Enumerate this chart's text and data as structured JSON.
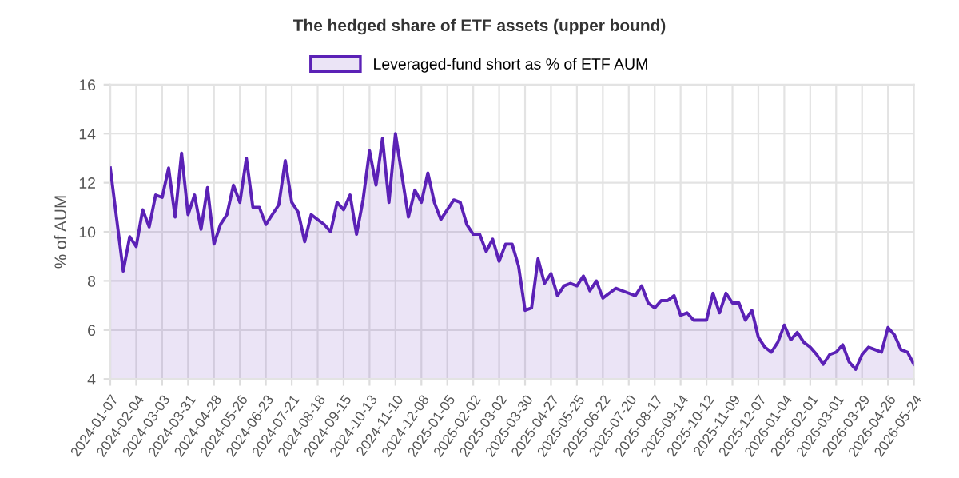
{
  "chart_data": {
    "type": "area",
    "title": "The hedged share of ETF assets (upper bound)",
    "ylabel": "% of AUM",
    "legend": "top",
    "grid": true,
    "marker": "none",
    "line_style": "solid",
    "xlim": [
      "2024-01-07",
      "2026-05-24"
    ],
    "ylim": [
      4,
      16
    ],
    "yticks": [
      4,
      6,
      8,
      10,
      12,
      14,
      16
    ],
    "xticks": [
      "2024-01-07",
      "2024-02-04",
      "2024-03-03",
      "2024-03-31",
      "2024-04-28",
      "2024-05-26",
      "2024-06-23",
      "2024-07-21",
      "2024-08-18",
      "2024-09-15",
      "2024-10-13",
      "2024-11-10",
      "2024-12-08",
      "2025-01-05",
      "2025-02-02",
      "2025-03-02",
      "2025-03-30",
      "2025-04-27",
      "2025-05-25",
      "2025-06-22",
      "2025-07-20",
      "2025-08-17",
      "2025-09-14",
      "2025-10-12",
      "2025-11-09",
      "2025-12-07",
      "2026-01-04",
      "2026-02-01",
      "2026-03-01",
      "2026-03-29",
      "2026-04-26",
      "2026-05-24"
    ],
    "x": [
      "2024-01-07",
      "2024-01-14",
      "2024-01-21",
      "2024-01-28",
      "2024-02-04",
      "2024-02-11",
      "2024-02-18",
      "2024-02-25",
      "2024-03-03",
      "2024-03-10",
      "2024-03-17",
      "2024-03-24",
      "2024-03-31",
      "2024-04-07",
      "2024-04-14",
      "2024-04-21",
      "2024-04-28",
      "2024-05-05",
      "2024-05-12",
      "2024-05-19",
      "2024-05-26",
      "2024-06-02",
      "2024-06-09",
      "2024-06-16",
      "2024-06-23",
      "2024-06-30",
      "2024-07-07",
      "2024-07-14",
      "2024-07-21",
      "2024-07-28",
      "2024-08-04",
      "2024-08-11",
      "2024-08-18",
      "2024-08-25",
      "2024-09-01",
      "2024-09-08",
      "2024-09-15",
      "2024-09-22",
      "2024-09-29",
      "2024-10-06",
      "2024-10-13",
      "2024-10-20",
      "2024-10-27",
      "2024-11-03",
      "2024-11-10",
      "2024-11-17",
      "2024-11-24",
      "2024-12-01",
      "2024-12-08",
      "2024-12-15",
      "2024-12-22",
      "2024-12-29",
      "2025-01-05",
      "2025-01-12",
      "2025-01-19",
      "2025-01-26",
      "2025-02-02",
      "2025-02-09",
      "2025-02-16",
      "2025-02-23",
      "2025-03-02",
      "2025-03-09",
      "2025-03-16",
      "2025-03-23",
      "2025-03-30",
      "2025-04-06",
      "2025-04-13",
      "2025-04-20",
      "2025-04-27",
      "2025-05-04",
      "2025-05-11",
      "2025-05-18",
      "2025-05-25",
      "2025-06-01",
      "2025-06-08",
      "2025-06-15",
      "2025-06-22",
      "2025-06-29",
      "2025-07-06",
      "2025-07-13",
      "2025-07-20",
      "2025-07-27",
      "2025-08-03",
      "2025-08-10",
      "2025-08-17",
      "2025-08-24",
      "2025-08-31",
      "2025-09-07",
      "2025-09-14",
      "2025-09-21",
      "2025-09-28",
      "2025-10-05",
      "2025-10-12",
      "2025-10-19",
      "2025-10-26",
      "2025-11-02",
      "2025-11-09",
      "2025-11-16",
      "2025-11-23",
      "2025-11-30",
      "2025-12-07",
      "2025-12-14",
      "2025-12-21",
      "2025-12-28",
      "2026-01-04",
      "2026-01-11",
      "2026-01-18",
      "2026-01-25",
      "2026-02-01",
      "2026-02-08",
      "2026-02-15",
      "2026-02-22",
      "2026-03-01",
      "2026-03-08",
      "2026-03-15",
      "2026-03-22",
      "2026-03-29",
      "2026-04-05",
      "2026-04-12",
      "2026-04-19",
      "2026-04-26",
      "2026-05-03",
      "2026-05-10",
      "2026-05-17",
      "2026-05-24"
    ],
    "series": [
      {
        "name": "Leveraged-fund short as % of ETF AUM",
        "color": "#5b21b6",
        "values": [
          12.6,
          10.5,
          8.4,
          9.8,
          9.4,
          10.9,
          10.2,
          11.5,
          11.4,
          12.6,
          10.6,
          13.2,
          10.7,
          11.5,
          10.1,
          11.8,
          9.5,
          10.3,
          10.7,
          11.9,
          11.2,
          13.0,
          11.0,
          11.0,
          10.3,
          10.7,
          11.1,
          12.9,
          11.2,
          10.8,
          9.6,
          10.7,
          10.5,
          10.3,
          10.0,
          11.2,
          10.9,
          11.5,
          9.9,
          11.3,
          13.3,
          11.9,
          13.8,
          11.2,
          14.0,
          12.3,
          10.6,
          11.7,
          11.2,
          12.4,
          11.2,
          10.5,
          10.9,
          11.3,
          11.2,
          10.3,
          9.9,
          9.9,
          9.2,
          9.7,
          8.8,
          9.5,
          9.5,
          8.6,
          6.8,
          6.9,
          8.9,
          7.9,
          8.3,
          7.4,
          7.8,
          7.9,
          7.8,
          8.2,
          7.6,
          8.0,
          7.3,
          7.5,
          7.7,
          7.6,
          7.5,
          7.4,
          7.8,
          7.1,
          6.9,
          7.2,
          7.2,
          7.4,
          6.6,
          6.7,
          6.4,
          6.4,
          6.4,
          7.5,
          6.7,
          7.5,
          7.1,
          7.1,
          6.4,
          6.8,
          5.7,
          5.3,
          5.1,
          5.5,
          6.2,
          5.6,
          5.9,
          5.5,
          5.3,
          5.0,
          4.6,
          5.0,
          5.1,
          5.4,
          4.7,
          4.4,
          5.0,
          5.3,
          5.2,
          5.1,
          6.1,
          5.8,
          5.2,
          5.1,
          4.6
        ]
      }
    ]
  }
}
